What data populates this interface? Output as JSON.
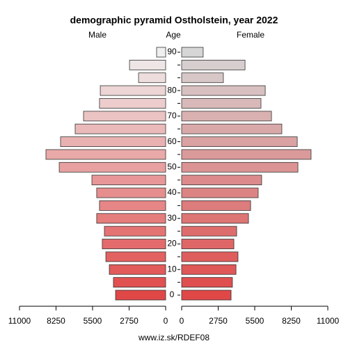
{
  "chart_data": {
    "type": "pyramid",
    "title": "demographic pyramid Ostholstein, year 2022",
    "left_label": "Male",
    "center_label": "Age",
    "right_label": "Female",
    "footer": "www.iz.sk/RDEF08",
    "categories": [
      "0",
      null,
      "10",
      null,
      "20",
      null,
      "30",
      null,
      "40",
      null,
      "50",
      null,
      "60",
      null,
      "70",
      null,
      "80",
      null,
      null,
      "90"
    ],
    "series": [
      {
        "name": "Male",
        "colors": [
          "#e04848",
          "#efefef"
        ],
        "values": [
          3770,
          3930,
          4240,
          4500,
          4770,
          4610,
          5190,
          4980,
          5190,
          5550,
          8010,
          9010,
          7910,
          6810,
          6180,
          4980,
          4920,
          2040,
          2720,
          680
        ]
      },
      {
        "name": "Female",
        "colors": [
          "#e04848",
          "#d6d6d6"
        ],
        "values": [
          3720,
          3820,
          4090,
          4240,
          3930,
          4140,
          5030,
          5190,
          5760,
          6020,
          8750,
          9740,
          8700,
          7540,
          6760,
          5970,
          6290,
          3140,
          4770,
          1620
        ]
      }
    ],
    "xlim": [
      0,
      11000
    ],
    "xticks": [
      0,
      2750,
      5500,
      8250,
      11000
    ]
  }
}
